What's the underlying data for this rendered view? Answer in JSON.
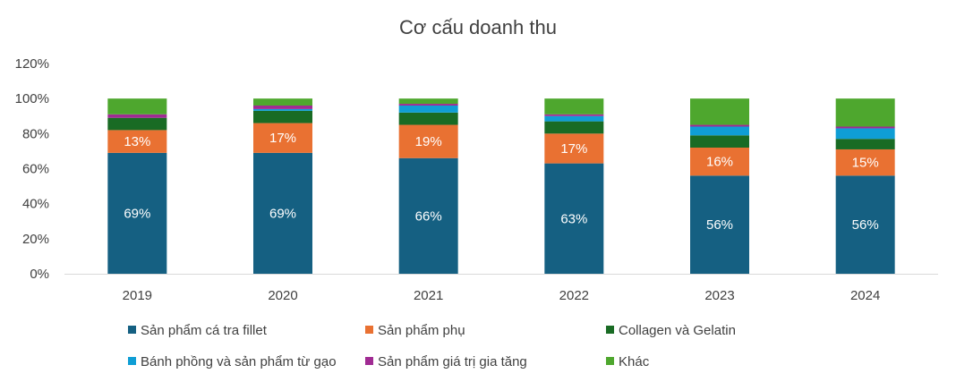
{
  "chart_data": {
    "type": "bar",
    "stacked": true,
    "title": "Cơ cấu doanh thu",
    "categories": [
      "2019",
      "2020",
      "2021",
      "2022",
      "2023",
      "2024"
    ],
    "y_ticks": [
      "0%",
      "20%",
      "40%",
      "60%",
      "80%",
      "100%",
      "120%"
    ],
    "ylim": [
      0,
      120
    ],
    "grid": false,
    "legend_position": "bottom",
    "series": [
      {
        "name": "Sản phẩm cá tra fillet",
        "color": "#156082",
        "values": [
          69,
          69,
          66,
          63,
          56,
          56
        ],
        "labels": [
          "69%",
          "69%",
          "66%",
          "63%",
          "56%",
          "56%"
        ]
      },
      {
        "name": "Sản phẩm phụ",
        "color": "#E97132",
        "values": [
          13,
          17,
          19,
          17,
          16,
          15
        ],
        "labels": [
          "13%",
          "17%",
          "19%",
          "17%",
          "16%",
          "15%"
        ]
      },
      {
        "name": "Collagen và Gelatin",
        "color": "#196B24",
        "values": [
          7,
          7,
          7,
          7,
          7,
          6
        ],
        "labels": []
      },
      {
        "name": "Bánh phồng và sản phẩm từ gạo",
        "color": "#0F9ED5",
        "values": [
          0,
          1,
          4,
          3,
          5,
          6
        ],
        "labels": []
      },
      {
        "name": "Sản phẩm giá trị gia tăng",
        "color": "#A02B93",
        "values": [
          2,
          2,
          1,
          1,
          1,
          1
        ],
        "labels": []
      },
      {
        "name": "Khác",
        "color": "#4EA72E",
        "values": [
          9,
          4,
          3,
          9,
          15,
          16
        ],
        "labels": []
      }
    ]
  }
}
